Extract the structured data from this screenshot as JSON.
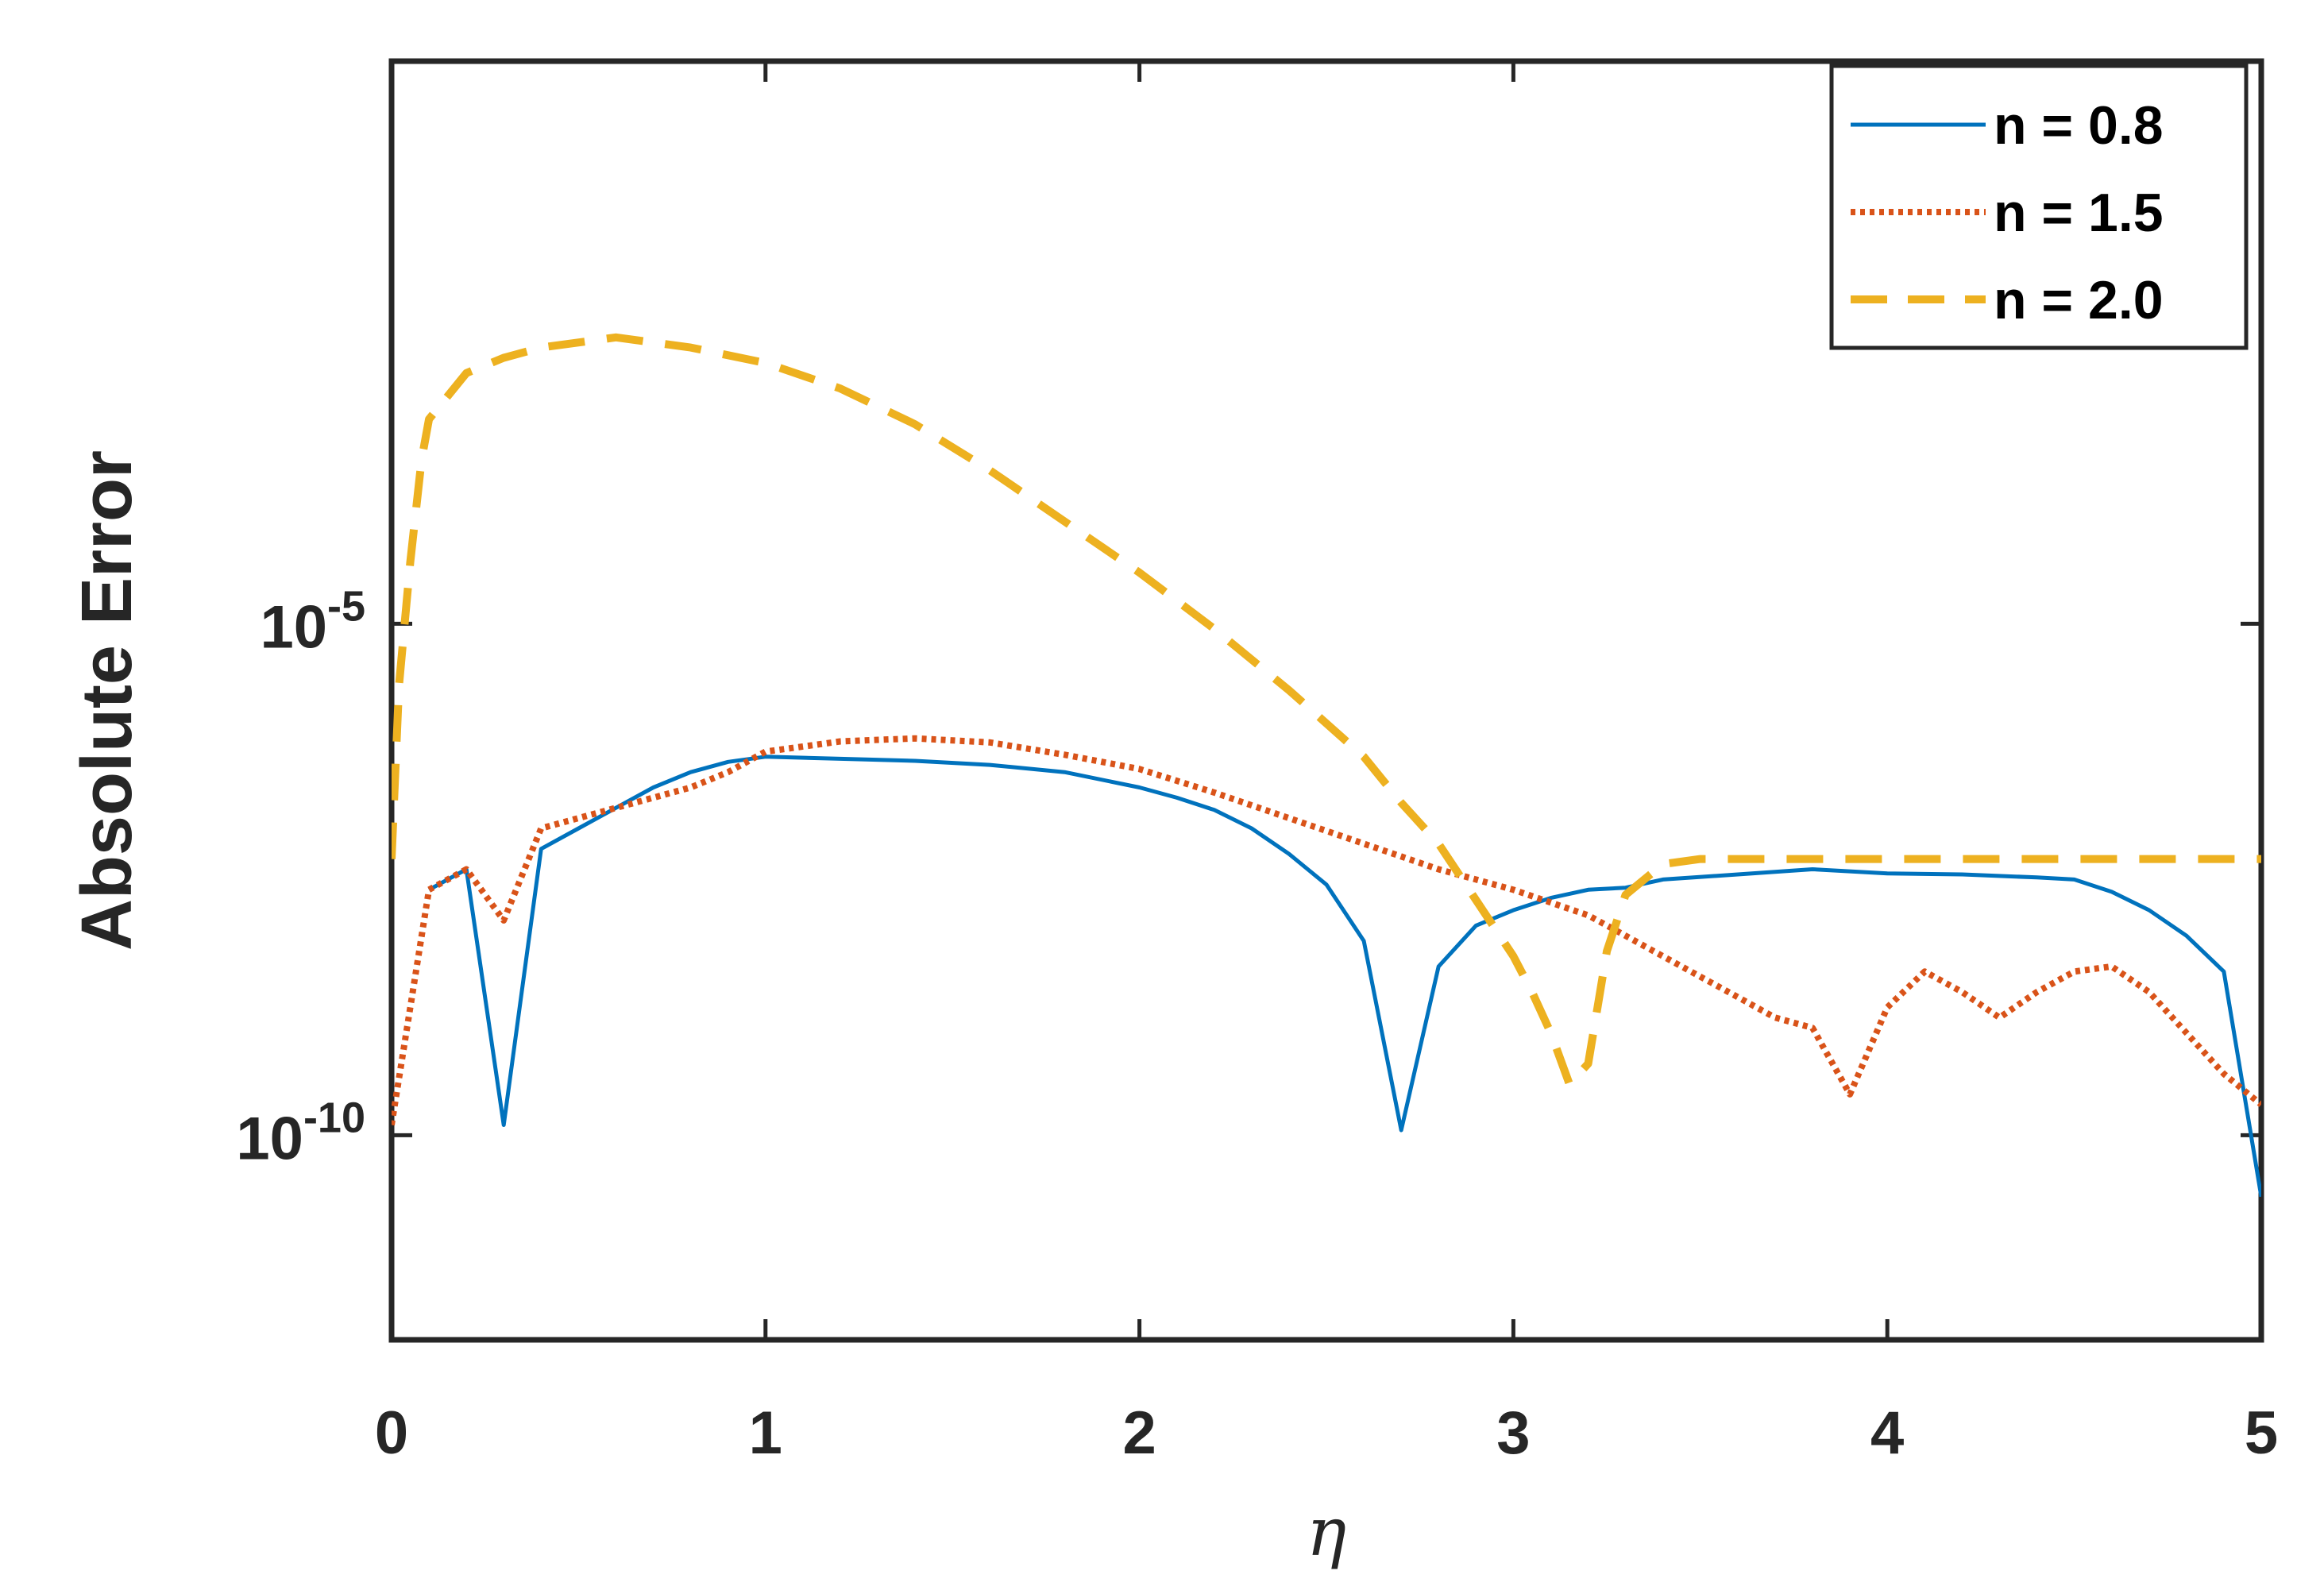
{
  "chart_data": {
    "type": "line",
    "xlabel": "η",
    "ylabel": "Absolute Error",
    "xlim": [
      0,
      5
    ],
    "ylim_log10": [
      -12,
      0.5
    ],
    "y_scale": "log",
    "x_ticks": [
      0,
      1,
      2,
      3,
      4,
      5
    ],
    "x_tick_labels": [
      "0",
      "1",
      "2",
      "3",
      "4",
      "5"
    ],
    "y_ticks": [
      {
        "base": "10",
        "exp": "-5",
        "log10": -5
      },
      {
        "base": "10",
        "exp": "-10",
        "log10": -10
      }
    ],
    "grid": false,
    "legend_position": "top-right",
    "series": [
      {
        "name": "n = 0.8",
        "color": "#0072BD",
        "style": "solid",
        "x": [
          0.1,
          0.2,
          0.3,
          0.4,
          0.5,
          0.6,
          0.7,
          0.8,
          0.9,
          1.0,
          1.2,
          1.4,
          1.6,
          1.8,
          2.0,
          2.1,
          2.2,
          2.3,
          2.4,
          2.5,
          2.6,
          2.7,
          2.8,
          2.9,
          3.0,
          3.1,
          3.2,
          3.3,
          3.4,
          3.6,
          3.8,
          4.0,
          4.2,
          4.4,
          4.5,
          4.6,
          4.7,
          4.8,
          4.9,
          5.0
        ],
        "log10": [
          -7.6,
          -7.4,
          -9.9,
          -7.2,
          -7.0,
          -6.8,
          -6.6,
          -6.45,
          -6.35,
          -6.3,
          -6.32,
          -6.34,
          -6.38,
          -6.45,
          -6.6,
          -6.7,
          -6.82,
          -7.0,
          -7.25,
          -7.55,
          -8.1,
          -9.95,
          -8.35,
          -7.95,
          -7.8,
          -7.68,
          -7.6,
          -7.58,
          -7.5,
          -7.45,
          -7.4,
          -7.44,
          -7.45,
          -7.48,
          -7.5,
          -7.62,
          -7.8,
          -8.05,
          -8.4,
          -10.6
        ]
      },
      {
        "name": "n = 1.5",
        "color": "#D95319",
        "style": "dotted",
        "x": [
          0.0,
          0.1,
          0.2,
          0.3,
          0.4,
          0.5,
          0.6,
          0.7,
          0.8,
          0.9,
          1.0,
          1.2,
          1.4,
          1.6,
          1.8,
          2.0,
          2.2,
          2.4,
          2.6,
          2.8,
          3.0,
          3.2,
          3.4,
          3.5,
          3.6,
          3.7,
          3.8,
          3.9,
          4.0,
          4.1,
          4.2,
          4.3,
          4.4,
          4.5,
          4.6,
          4.7,
          4.8,
          4.9,
          5.0
        ],
        "log10": [
          -9.9,
          -7.6,
          -7.4,
          -7.9,
          -7.0,
          -6.9,
          -6.8,
          -6.7,
          -6.6,
          -6.45,
          -6.25,
          -6.15,
          -6.12,
          -6.16,
          -6.28,
          -6.42,
          -6.65,
          -6.9,
          -7.15,
          -7.4,
          -7.6,
          -7.85,
          -8.25,
          -8.45,
          -8.65,
          -8.85,
          -8.95,
          -9.6,
          -8.75,
          -8.4,
          -8.6,
          -8.85,
          -8.6,
          -8.4,
          -8.35,
          -8.6,
          -9.0,
          -9.4,
          -9.7
        ]
      },
      {
        "name": "n = 2.0",
        "color": "#EDB120",
        "style": "dashed",
        "x": [
          0.0,
          0.02,
          0.05,
          0.08,
          0.1,
          0.2,
          0.3,
          0.4,
          0.6,
          0.8,
          1.0,
          1.2,
          1.4,
          1.6,
          1.8,
          2.0,
          2.2,
          2.4,
          2.6,
          2.7,
          2.8,
          2.9,
          3.0,
          3.05,
          3.1,
          3.15,
          3.2,
          3.25,
          3.3,
          3.4,
          3.5,
          3.6,
          3.8,
          4.0,
          4.2,
          4.4,
          4.6,
          4.8,
          5.0
        ],
        "log10": [
          -7.3,
          -5.6,
          -4.4,
          -3.4,
          -3.0,
          -2.55,
          -2.4,
          -2.3,
          -2.2,
          -2.3,
          -2.45,
          -2.7,
          -3.05,
          -3.5,
          -4.0,
          -4.5,
          -5.05,
          -5.65,
          -6.3,
          -6.75,
          -7.15,
          -7.7,
          -8.25,
          -8.6,
          -9.0,
          -9.5,
          -9.3,
          -8.2,
          -7.65,
          -7.35,
          -7.3,
          -7.3,
          -7.3,
          -7.3,
          -7.3,
          -7.3,
          -7.3,
          -7.3,
          -7.3
        ]
      }
    ]
  }
}
